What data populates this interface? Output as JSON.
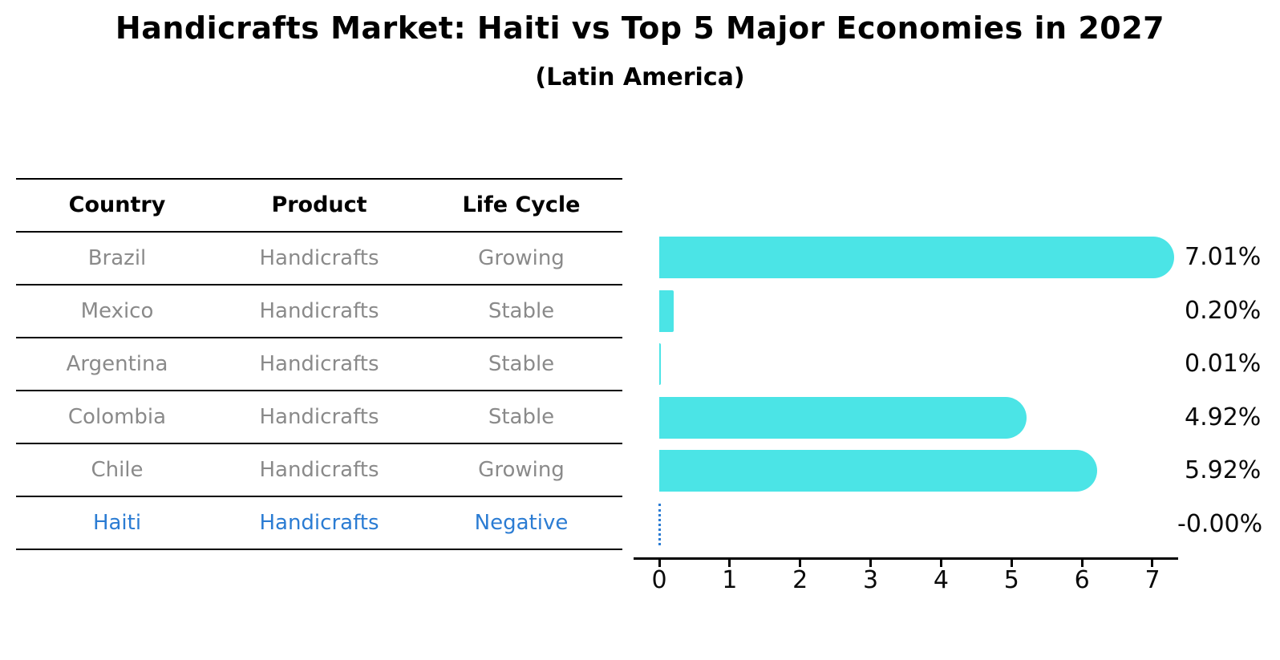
{
  "chart_data": {
    "type": "bar",
    "orientation": "horizontal",
    "title": "Handicrafts Market: Haiti vs Top 5 Major Economies in 2027",
    "subtitle": "(Latin America)",
    "categories": [
      "Brazil",
      "Mexico",
      "Argentina",
      "Colombia",
      "Chile",
      "Haiti"
    ],
    "values": [
      7.01,
      0.2,
      0.01,
      4.92,
      5.92,
      -0.0
    ],
    "value_labels": [
      "7.01%",
      "0.20%",
      "0.01%",
      "4.92%",
      "5.92%",
      "-0.00%"
    ],
    "x_ticks": [
      "0",
      "1",
      "2",
      "3",
      "4",
      "5",
      "6",
      "7"
    ],
    "xlim": [
      -0.37,
      7.37
    ],
    "xlabel": "",
    "ylabel": "",
    "grid": false,
    "legend": false,
    "bar_color": "#4be4e6",
    "highlight_color": "#2b7cd3",
    "highlight_category": "Haiti",
    "zero_marker": "dotted-line"
  },
  "table": {
    "headers": [
      "Country",
      "Product",
      "Life Cycle"
    ],
    "rows": [
      {
        "country": "Brazil",
        "product": "Handicrafts",
        "life_cycle": "Growing",
        "highlight": false
      },
      {
        "country": "Mexico",
        "product": "Handicrafts",
        "life_cycle": "Stable",
        "highlight": false
      },
      {
        "country": "Argentina",
        "product": "Handicrafts",
        "life_cycle": "Stable",
        "highlight": false
      },
      {
        "country": "Colombia",
        "product": "Handicrafts",
        "life_cycle": "Stable",
        "highlight": false
      },
      {
        "country": "Chile",
        "product": "Handicrafts",
        "life_cycle": "Growing",
        "highlight": false
      },
      {
        "country": "Haiti",
        "product": "Handicrafts",
        "life_cycle": "Negative",
        "highlight": true
      }
    ]
  }
}
